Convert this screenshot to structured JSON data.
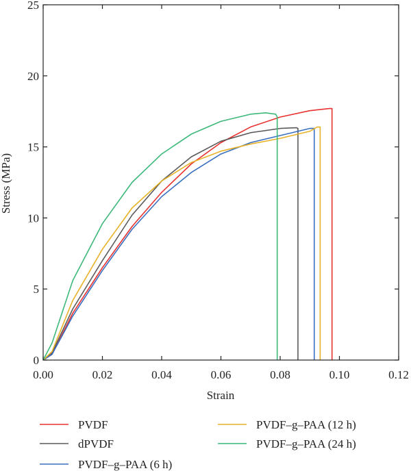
{
  "chart_data": {
    "type": "line",
    "title": "",
    "xlabel": "Strain",
    "ylabel": "Stress (MPa)",
    "xlim": [
      0,
      0.12
    ],
    "ylim": [
      0,
      25
    ],
    "xticks": [
      "0.00",
      "0.02",
      "0.04",
      "0.06",
      "0.08",
      "0.10",
      "0.12"
    ],
    "yticks": [
      "0",
      "5",
      "10",
      "15",
      "20",
      "25"
    ],
    "grid": false,
    "legend_position": "bottom",
    "series": [
      {
        "name": "PVDF",
        "color": "#e8312f",
        "points": [
          [
            0,
            0
          ],
          [
            0.003,
            0.4
          ],
          [
            0.01,
            3.3
          ],
          [
            0.02,
            6.5
          ],
          [
            0.03,
            9.4
          ],
          [
            0.04,
            11.8
          ],
          [
            0.05,
            13.8
          ],
          [
            0.06,
            15.3
          ],
          [
            0.07,
            16.4
          ],
          [
            0.08,
            17.1
          ],
          [
            0.09,
            17.55
          ],
          [
            0.0965,
            17.7
          ],
          [
            0.0975,
            17.7
          ],
          [
            0.0975,
            0
          ]
        ]
      },
      {
        "name": "dPVDF",
        "color": "#5a5a5a",
        "points": [
          [
            0,
            0
          ],
          [
            0.003,
            0.5
          ],
          [
            0.01,
            3.6
          ],
          [
            0.02,
            7.0
          ],
          [
            0.03,
            10.2
          ],
          [
            0.04,
            12.6
          ],
          [
            0.05,
            14.3
          ],
          [
            0.06,
            15.4
          ],
          [
            0.07,
            16.0
          ],
          [
            0.08,
            16.3
          ],
          [
            0.0855,
            16.35
          ],
          [
            0.086,
            16.3
          ],
          [
            0.086,
            0
          ]
        ]
      },
      {
        "name": "PVDF–g–PAA (6 h)",
        "color": "#3a6fbf",
        "points": [
          [
            0,
            0
          ],
          [
            0.003,
            0.4
          ],
          [
            0.01,
            3.1
          ],
          [
            0.02,
            6.3
          ],
          [
            0.03,
            9.2
          ],
          [
            0.04,
            11.5
          ],
          [
            0.05,
            13.2
          ],
          [
            0.06,
            14.5
          ],
          [
            0.07,
            15.3
          ],
          [
            0.08,
            15.8
          ],
          [
            0.09,
            16.3
          ],
          [
            0.0915,
            16.3
          ],
          [
            0.0915,
            0
          ]
        ]
      },
      {
        "name": "PVDF–g–PAA (12 h)",
        "color": "#e8b127",
        "points": [
          [
            0,
            0
          ],
          [
            0.003,
            0.6
          ],
          [
            0.01,
            4.2
          ],
          [
            0.02,
            7.8
          ],
          [
            0.03,
            10.7
          ],
          [
            0.04,
            12.6
          ],
          [
            0.05,
            13.9
          ],
          [
            0.06,
            14.7
          ],
          [
            0.07,
            15.2
          ],
          [
            0.08,
            15.6
          ],
          [
            0.09,
            16.1
          ],
          [
            0.0925,
            16.4
          ],
          [
            0.0935,
            16.4
          ],
          [
            0.0935,
            0
          ]
        ]
      },
      {
        "name": "PVDF–g–PAA (24 h)",
        "color": "#3cb878",
        "points": [
          [
            0,
            0
          ],
          [
            0.003,
            1.2
          ],
          [
            0.01,
            5.6
          ],
          [
            0.02,
            9.6
          ],
          [
            0.03,
            12.5
          ],
          [
            0.04,
            14.5
          ],
          [
            0.05,
            15.9
          ],
          [
            0.06,
            16.8
          ],
          [
            0.07,
            17.3
          ],
          [
            0.075,
            17.4
          ],
          [
            0.0785,
            17.3
          ],
          [
            0.079,
            17.1
          ],
          [
            0.079,
            0
          ]
        ]
      }
    ]
  }
}
